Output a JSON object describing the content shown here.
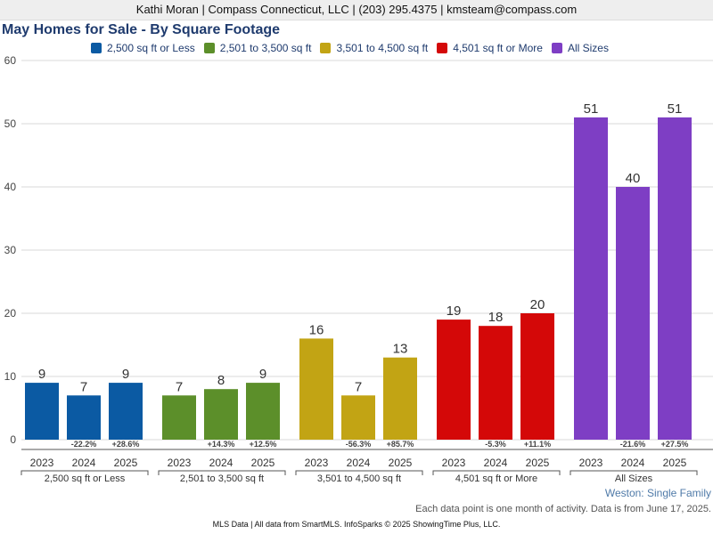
{
  "header": {
    "agent_line": "Kathi Moran | Compass Connecticut, LLC | (203) 295.4375 | kmsteam@compass.com"
  },
  "chart_data": {
    "type": "bar",
    "title": "May Homes for Sale - By Square Footage",
    "subtitle": "Weston: Single Family",
    "note": "Each data point is one month of activity. Data is from June 17, 2025.",
    "footer": "MLS Data | All data from SmartMLS. InfoSparks © 2025 ShowingTime Plus, LLC.",
    "ylim": [
      0,
      60
    ],
    "yticks": [
      0,
      10,
      20,
      30,
      40,
      50,
      60
    ],
    "grid": true,
    "legend_position": "top",
    "years": [
      "2023",
      "2024",
      "2025"
    ],
    "groups": [
      {
        "name": "2,500 sq ft or Less",
        "color": "#0b5aa3",
        "values": [
          9,
          7,
          9
        ],
        "changes": [
          "",
          "-22.2%",
          "+28.6%"
        ]
      },
      {
        "name": "2,501 to 3,500 sq ft",
        "color": "#5c8f2a",
        "values": [
          7,
          8,
          9
        ],
        "changes": [
          "",
          "+14.3%",
          "+12.5%"
        ]
      },
      {
        "name": "3,501 to 4,500 sq ft",
        "color": "#c2a414",
        "values": [
          16,
          7,
          13
        ],
        "changes": [
          "",
          "-56.3%",
          "+85.7%"
        ]
      },
      {
        "name": "4,501 sq ft or More",
        "color": "#d40808",
        "values": [
          19,
          18,
          20
        ],
        "changes": [
          "",
          "-5.3%",
          "+11.1%"
        ]
      },
      {
        "name": "All Sizes",
        "color": "#7e3ec4",
        "values": [
          51,
          40,
          51
        ],
        "changes": [
          "",
          "-21.6%",
          "+27.5%"
        ]
      }
    ]
  }
}
